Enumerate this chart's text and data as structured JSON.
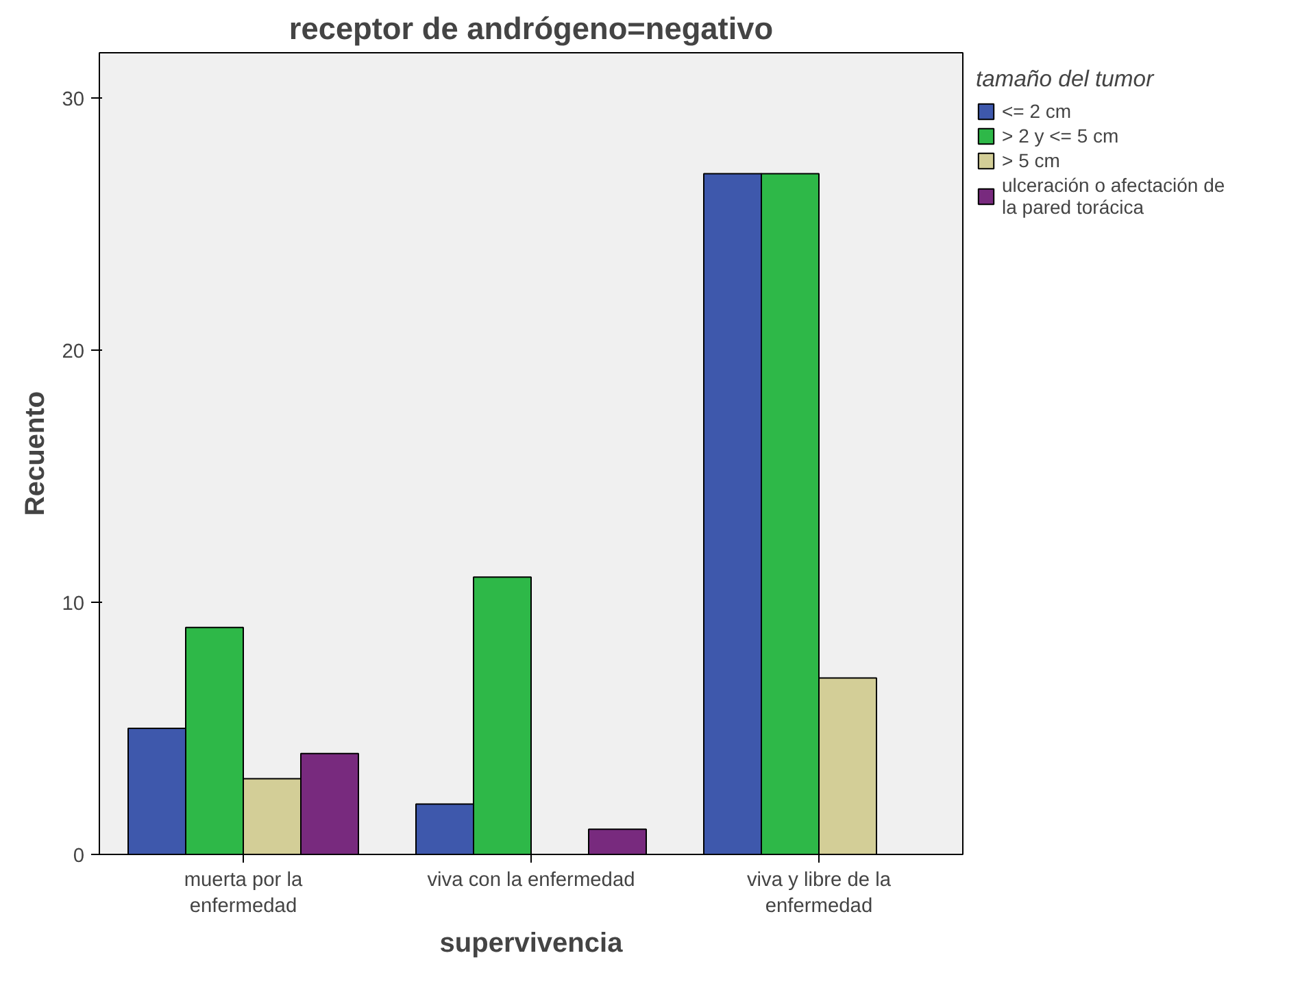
{
  "chart_data": {
    "type": "bar",
    "title": "receptor de andrógeno=negativo",
    "xlabel": "supervivencia",
    "ylabel": "Recuento",
    "legend_title": "tamaño del tumor",
    "categories": [
      "muerta por la enfermedad",
      "viva con la enfermedad",
      "viva y libre de la enfermedad"
    ],
    "series": [
      {
        "name": "<= 2 cm",
        "color": "#3e58ac",
        "values": [
          5,
          2,
          27
        ]
      },
      {
        "name": "> 2 y <= 5 cm",
        "color": "#2eb848",
        "values": [
          9,
          11,
          27
        ]
      },
      {
        "name": "> 5 cm",
        "color": "#d3ce97",
        "values": [
          3,
          null,
          7
        ]
      },
      {
        "name": "ulceración o afectación de la pared torácica",
        "color": "#782a7e",
        "values": [
          4,
          1,
          null
        ]
      }
    ],
    "ylim": [
      0,
      31.8
    ],
    "yticks": [
      0,
      10,
      20,
      30
    ],
    "grid": false,
    "legend": "right"
  }
}
